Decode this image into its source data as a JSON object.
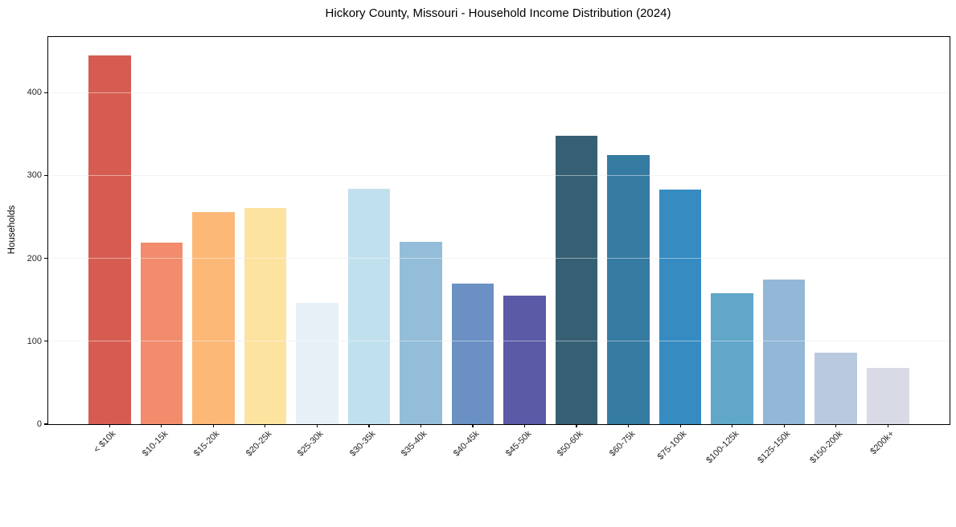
{
  "chart_data": {
    "type": "bar",
    "title": "Hickory County, Missouri - Household Income Distribution (2024)",
    "xlabel": "",
    "ylabel": "Households",
    "categories": [
      "< $10k",
      "$10-15k",
      "$15-20k",
      "$20-25k",
      "$25-30k",
      "$30-35k",
      "$35-40k",
      "$40-45k",
      "$45-50k",
      "$50-60k",
      "$60-75k",
      "$75-100k",
      "$100-125k",
      "$125-150k",
      "$150-200k",
      "$200k+"
    ],
    "values": [
      445,
      219,
      256,
      261,
      146,
      284,
      220,
      170,
      155,
      348,
      325,
      283,
      158,
      174,
      86,
      68
    ],
    "bar_colors": [
      "#d65c52",
      "#f28c6c",
      "#fbb877",
      "#fde3a0",
      "#e7f0f6",
      "#c1e0ee",
      "#94bdd9",
      "#6b91c4",
      "#5a5aa6",
      "#365f74",
      "#367ba2",
      "#368bc1",
      "#60a7c9",
      "#92b7d7",
      "#b9c9df",
      "#d8dae5"
    ],
    "ylim": [
      0,
      467
    ],
    "yticks": [
      0,
      100,
      200,
      300,
      400
    ],
    "grid": true,
    "legend": false,
    "background_color": "#ffffff",
    "axis_color": "#000000",
    "gridline_color": "#e9e9ef"
  }
}
